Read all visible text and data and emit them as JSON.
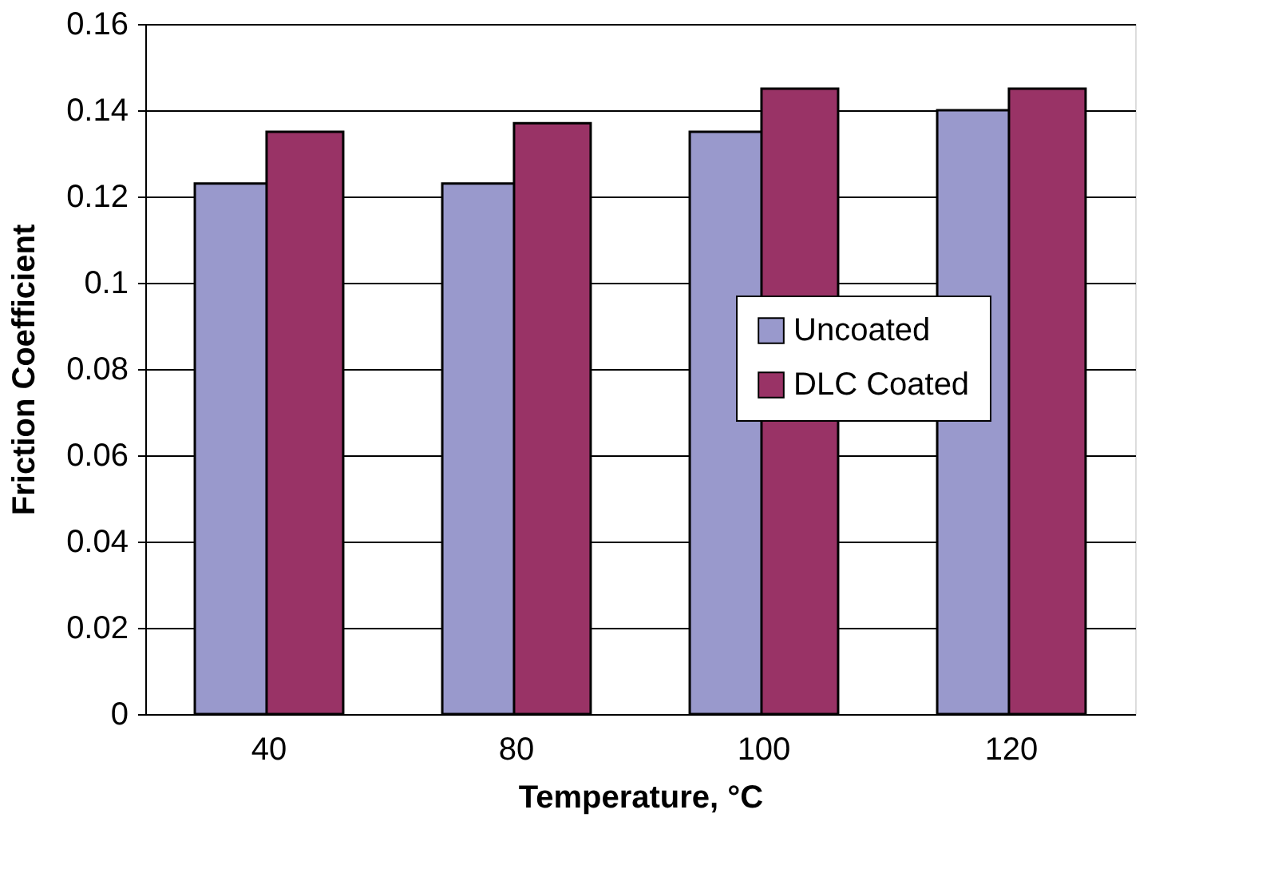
{
  "chart_data": {
    "type": "bar",
    "xlabel": "Temperature, °C",
    "ylabel": "Friction Coefficient",
    "categories": [
      "40",
      "80",
      "100",
      "120"
    ],
    "series": [
      {
        "name": "Uncoated",
        "color": "#9999cc",
        "values": [
          0.123,
          0.123,
          0.135,
          0.14
        ]
      },
      {
        "name": "DLC Coated",
        "color": "#993366",
        "values": [
          0.135,
          0.137,
          0.145,
          0.145
        ]
      }
    ],
    "ylim": [
      0,
      0.16
    ],
    "yticks": [
      0,
      0.02,
      0.04,
      0.06,
      0.08,
      0.1,
      0.12,
      0.14,
      0.16
    ],
    "grid": "y",
    "legend": "right"
  }
}
